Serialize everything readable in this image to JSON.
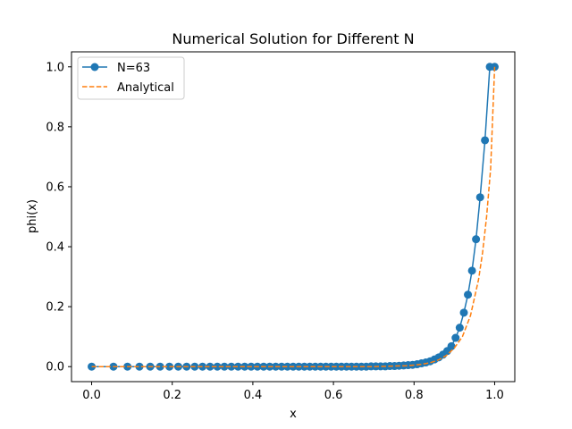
{
  "chart_data": {
    "type": "line",
    "title": "Numerical Solution for Different N",
    "xlabel": "x",
    "ylabel": "phi(x)",
    "xlim": [
      -0.05,
      1.05
    ],
    "ylim": [
      -0.05,
      1.05
    ],
    "xticks": [
      0.0,
      0.2,
      0.4,
      0.6,
      0.8,
      1.0
    ],
    "xtick_labels": [
      "0.0",
      "0.2",
      "0.4",
      "0.6",
      "0.8",
      "1.0"
    ],
    "yticks": [
      0.0,
      0.2,
      0.4,
      0.6,
      0.8,
      1.0
    ],
    "ytick_labels": [
      "0.0",
      "0.2",
      "0.4",
      "0.6",
      "0.8",
      "1.0"
    ],
    "grid": false,
    "legend_position": "top-left",
    "series": [
      {
        "name": "N=63",
        "style": "solid-with-circle-markers",
        "color": "#1f77b4",
        "x": [
          0.0,
          0.0541,
          0.0889,
          0.1186,
          0.1453,
          0.1699,
          0.193,
          0.2149,
          0.2357,
          0.2558,
          0.2751,
          0.2937,
          0.3118,
          0.3294,
          0.3466,
          0.3633,
          0.3797,
          0.3957,
          0.4114,
          0.4268,
          0.4419,
          0.4568,
          0.4714,
          0.4858,
          0.5,
          0.514,
          0.5278,
          0.5414,
          0.5549,
          0.5682,
          0.5813,
          0.5943,
          0.6071,
          0.6198,
          0.6324,
          0.6448,
          0.6571,
          0.6693,
          0.6814,
          0.6934,
          0.7052,
          0.717,
          0.7286,
          0.7401,
          0.7516,
          0.7629,
          0.7742,
          0.7854,
          0.7964,
          0.8075,
          0.8184,
          0.8292,
          0.84,
          0.8507,
          0.8613,
          0.8718,
          0.8823,
          0.8927,
          0.9031,
          0.9133,
          0.9236,
          0.9337,
          0.9438,
          0.9538,
          0.964,
          0.976,
          0.988,
          1.0
        ],
        "y": [
          0.0,
          0.0,
          0.0,
          0.0,
          0.0,
          0.0,
          0.0,
          0.0,
          0.0,
          0.0,
          0.0,
          0.0,
          0.0,
          0.0,
          0.0,
          0.0,
          0.0,
          0.0,
          0.0,
          0.0,
          0.0,
          0.0,
          0.0,
          0.0,
          0.0,
          0.0,
          0.0,
          0.0,
          0.0,
          0.0,
          0.0,
          0.0,
          0.0,
          0.0,
          0.0,
          0.0,
          0.0,
          0.0,
          0.0,
          0.001,
          0.001,
          0.001,
          0.001,
          0.002,
          0.002,
          0.003,
          0.004,
          0.005,
          0.006,
          0.008,
          0.011,
          0.014,
          0.018,
          0.024,
          0.031,
          0.04,
          0.052,
          0.068,
          0.096,
          0.13,
          0.18,
          0.24,
          0.32,
          0.425,
          0.565,
          0.755,
          1.0,
          1.0
        ]
      },
      {
        "name": "Analytical",
        "style": "dashed",
        "color": "#ff7f0e",
        "x": [
          0.0,
          0.7,
          0.75,
          0.78,
          0.8,
          0.82,
          0.84,
          0.86,
          0.88,
          0.9,
          0.92,
          0.94,
          0.96,
          0.97,
          0.98,
          0.99,
          1.0
        ],
        "y": [
          0.0,
          0.0,
          0.002,
          0.003,
          0.005,
          0.008,
          0.013,
          0.022,
          0.037,
          0.062,
          0.1,
          0.17,
          0.29,
          0.38,
          0.5,
          0.66,
          1.0
        ]
      }
    ]
  }
}
